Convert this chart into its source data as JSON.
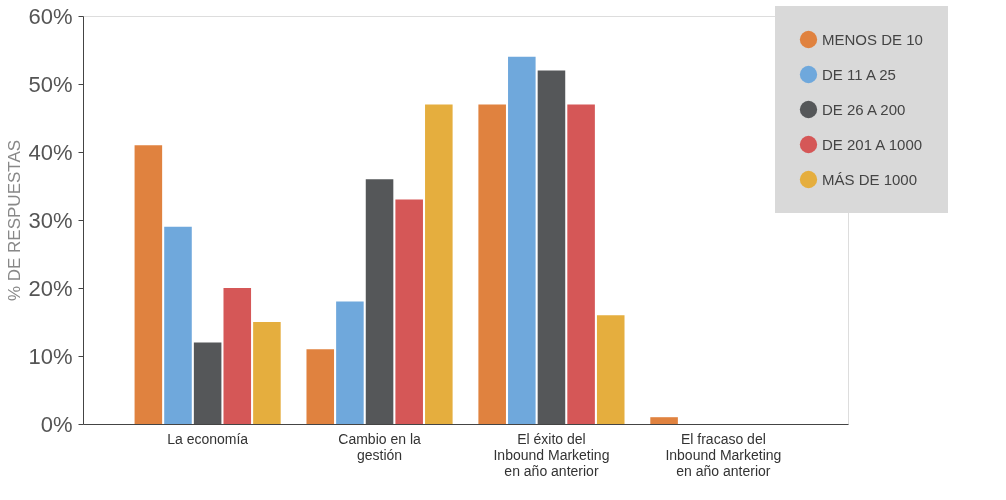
{
  "chart_data": {
    "type": "bar",
    "ylabel": "% DE RESPUESTAS",
    "categories": [
      "La economía",
      "Cambio en la gestión",
      "El éxito del Inbound Marketing en año anterior",
      "El fracaso del Inbound Marketing en año anterior"
    ],
    "series": [
      {
        "name": "MENOS DE 10",
        "color": "#e0823f",
        "values": [
          41,
          11,
          47,
          1
        ]
      },
      {
        "name": "DE 11 A 25",
        "color": "#6fa8dc",
        "values": [
          29,
          18,
          54,
          0
        ]
      },
      {
        "name": "DE 26 A 200",
        "color": "#555759",
        "values": [
          12,
          36,
          52,
          0
        ]
      },
      {
        "name": "DE 201 A 1000",
        "color": "#d55757",
        "values": [
          20,
          33,
          47,
          0
        ]
      },
      {
        "name": "MÁS DE 1000",
        "color": "#e5ae3e",
        "values": [
          15,
          47,
          16,
          0
        ]
      }
    ],
    "ylim": [
      0,
      60
    ],
    "yticks": [
      {
        "value": 0,
        "label": "0%"
      },
      {
        "value": 10,
        "label": "10%"
      },
      {
        "value": 20,
        "label": "20%"
      },
      {
        "value": 30,
        "label": "30%"
      },
      {
        "value": 40,
        "label": "40%"
      },
      {
        "value": 50,
        "label": "50%"
      },
      {
        "value": 60,
        "label": "60%"
      }
    ],
    "grid": false,
    "legend": "top right"
  }
}
